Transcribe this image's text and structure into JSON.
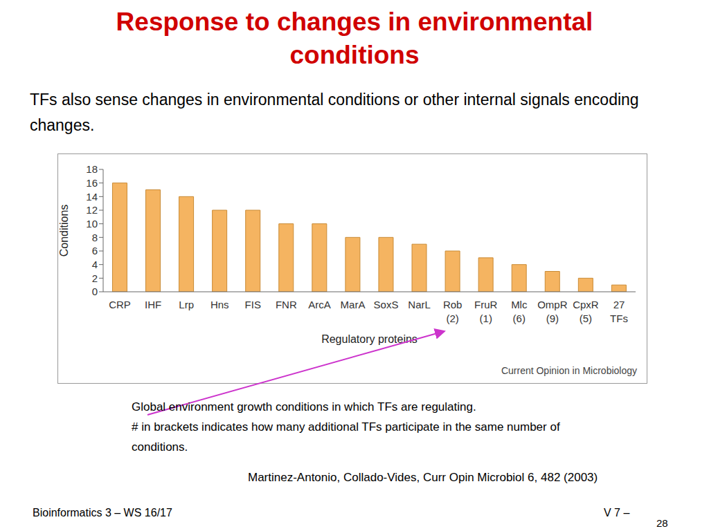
{
  "slide": {
    "title": "Response to changes in environmental conditions",
    "text": "TFs also sense changes in environmental conditions or other internal signals encoding changes.",
    "caption": [
      "Global environment growth conditions in which TFs are regulating.",
      "# in brackets indicates how many additional TFs participate in the same number of conditions."
    ],
    "citation": "Martinez-Antonio, Collado-Vides, Curr Opin Microbiol 6, 482 (2003)",
    "footer_left": "Bioinformatics 3 – WS 16/17",
    "footer_right": "V 7 –",
    "page": "28"
  },
  "chart_data": {
    "type": "bar",
    "x_label": "Regulatory proteins",
    "y_label": "Conditions",
    "annotations": [
      "Current Opinion in Microbiology"
    ],
    "categories": [
      "CRP",
      "IHF",
      "Lrp",
      "Hns",
      "FIS",
      "FNR",
      "ArcA",
      "MarA",
      "SoxS",
      "NarL",
      "Rob (2)",
      "FruR (1)",
      "Mlc (6)",
      "OmpR (9)",
      "CpxR (5)",
      "27 TFs"
    ],
    "values": [
      16,
      15,
      14,
      12,
      12,
      10,
      10,
      8,
      8,
      7,
      6,
      5,
      4,
      3,
      2,
      1
    ],
    "color": "#f5b461",
    "ylim": [
      0,
      18
    ],
    "yticks": [
      0,
      2,
      4,
      6,
      8,
      10,
      12,
      14,
      16,
      18
    ],
    "grid": false
  }
}
